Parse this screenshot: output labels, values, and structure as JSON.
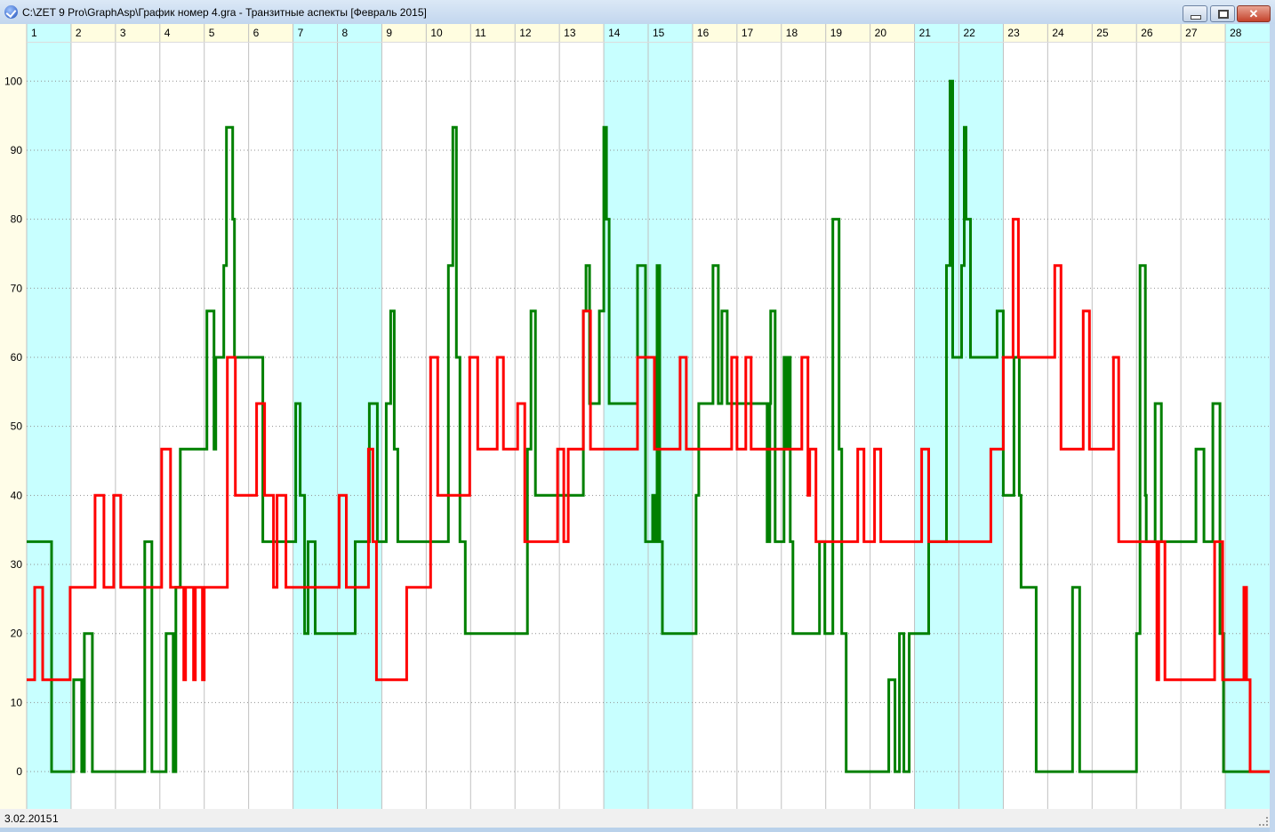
{
  "window": {
    "title": "C:\\ZET 9 Pro\\GraphAsp\\График номер 4.gra - Транзитные аспекты [Февраль 2015]",
    "close_glyph": "✕",
    "icons": [
      "app-checkmark-icon",
      "minimize-icon",
      "maximize-icon",
      "close-icon"
    ]
  },
  "status": {
    "date": "3.02.2015",
    "value": "1"
  },
  "colors": {
    "weekend": "#c8ffff",
    "header_bg": "#fffde0",
    "axis_bg": "#fffde8",
    "grid": "#c0c0c0",
    "series_green": "#008000",
    "series_red": "#ff0000"
  },
  "chart_data": {
    "type": "line",
    "step": true,
    "title": "",
    "xlabel": "",
    "ylabel": "",
    "xlim": [
      1,
      29
    ],
    "ylim": [
      -5.4,
      105.7
    ],
    "y_ticks": [
      0,
      10,
      20,
      30,
      40,
      50,
      60,
      70,
      80,
      90,
      100
    ],
    "y_tick_labels": [
      "0",
      "10",
      "20",
      "30",
      "40",
      "50",
      "60",
      "70",
      "80",
      "90",
      "100"
    ],
    "x_tick_labels": [
      "1",
      "2",
      "3",
      "4",
      "5",
      "6",
      "7",
      "8",
      "9",
      "10",
      "11",
      "12",
      "13",
      "14",
      "15",
      "16",
      "17",
      "18",
      "19",
      "20",
      "21",
      "22",
      "23",
      "24",
      "25",
      "26",
      "27",
      "28"
    ],
    "highlighted_days": [
      1,
      7,
      8,
      14,
      15,
      21,
      22,
      28
    ],
    "grid": {
      "vertical": "solid",
      "horizontal": "dotted"
    },
    "series": [
      {
        "color": "#008000",
        "x": [
          1.0,
          1.56,
          2.06,
          2.24,
          2.3,
          2.48,
          3.66,
          3.82,
          4.14,
          4.3,
          4.36,
          4.46,
          5.06,
          5.22,
          5.26,
          5.44,
          5.5,
          5.64,
          5.68,
          6.32,
          7.06,
          7.16,
          7.26,
          7.34,
          7.5,
          8.4,
          8.72,
          8.9,
          9.1,
          9.2,
          9.28,
          9.36,
          10.5,
          10.6,
          10.68,
          10.76,
          10.88,
          12.28,
          12.36,
          12.46,
          13.54,
          13.6,
          13.68,
          13.9,
          14.0,
          14.06,
          14.12,
          14.76,
          14.94,
          15.1,
          15.14,
          15.2,
          15.26,
          15.32,
          16.08,
          16.14,
          16.46,
          16.58,
          16.66,
          16.78,
          17.68,
          17.74,
          17.76,
          17.86,
          18.06,
          18.1,
          18.14,
          18.2,
          18.26,
          18.86,
          18.98,
          19.16,
          19.3,
          19.36,
          19.46,
          20.42,
          20.56,
          20.66,
          20.76,
          20.88,
          21.32,
          21.72,
          21.8,
          21.86,
          22.06,
          22.12,
          22.16,
          22.26,
          22.86,
          23.0,
          23.24,
          23.36,
          23.4,
          23.74,
          24.56,
          24.72,
          26.0,
          26.08,
          26.2,
          26.22,
          26.42,
          26.56,
          27.34,
          27.52,
          27.72,
          27.88,
          27.96,
          29.0
        ],
        "y": [
          33.3,
          0,
          13.3,
          0,
          20,
          0,
          33.3,
          0,
          20,
          0,
          26.7,
          46.7,
          66.7,
          46.7,
          60,
          73.3,
          93.3,
          80,
          60,
          33.3,
          53.3,
          40,
          20,
          33.3,
          20,
          33.3,
          53.3,
          33.3,
          53.3,
          66.7,
          46.7,
          33.3,
          73.3,
          93.3,
          60,
          33.3,
          20,
          46.7,
          66.7,
          40,
          66.7,
          73.3,
          53.3,
          66.7,
          93.3,
          80,
          53.3,
          73.3,
          33.3,
          40,
          33.3,
          73.3,
          33.3,
          20,
          40,
          53.3,
          73.3,
          53.3,
          66.7,
          53.3,
          33.3,
          53.3,
          66.7,
          33.3,
          60,
          46.7,
          60,
          33.3,
          20,
          33.3,
          20,
          80,
          46.7,
          20,
          0,
          13.3,
          0,
          20,
          0,
          20,
          33.3,
          73.3,
          100,
          60,
          73.3,
          93.3,
          80,
          60,
          66.7,
          40,
          60,
          40,
          26.7,
          0,
          26.7,
          0,
          20,
          73.3,
          40,
          33.3,
          53.3,
          33.3,
          46.7,
          33.3,
          53.3,
          20,
          0,
          0
        ]
      },
      {
        "color": "#ff0000",
        "x": [
          1.0,
          1.18,
          1.36,
          1.98,
          2.54,
          2.74,
          2.96,
          3.12,
          4.04,
          4.24,
          4.54,
          4.58,
          4.76,
          4.8,
          4.96,
          5.0,
          5.52,
          5.7,
          6.18,
          6.36,
          6.56,
          6.64,
          6.84,
          8.04,
          8.2,
          8.7,
          8.8,
          8.88,
          9.56,
          10.1,
          10.26,
          10.98,
          11.16,
          11.6,
          11.74,
          12.06,
          12.22,
          12.96,
          13.1,
          13.2,
          13.54,
          13.7,
          14.76,
          15.14,
          15.72,
          15.86,
          16.88,
          17.0,
          17.2,
          17.32,
          18.46,
          18.6,
          18.64,
          18.78,
          19.72,
          19.86,
          20.1,
          20.24,
          21.16,
          21.32,
          22.72,
          23.0,
          23.22,
          23.34,
          24.16,
          24.3,
          24.8,
          24.94,
          25.48,
          25.6,
          26.46,
          26.5,
          26.64,
          27.76,
          27.94,
          28.42,
          28.48,
          28.56,
          29.0
        ],
        "y": [
          13.3,
          26.7,
          13.3,
          26.7,
          40,
          26.7,
          40,
          26.7,
          46.7,
          26.7,
          13.3,
          26.7,
          13.3,
          26.7,
          13.3,
          26.7,
          60,
          40,
          53.3,
          40,
          26.7,
          40,
          26.7,
          40,
          26.7,
          46.7,
          33.3,
          13.3,
          26.7,
          60,
          40,
          60,
          46.7,
          60,
          46.7,
          53.3,
          33.3,
          46.7,
          33.3,
          46.7,
          66.7,
          46.7,
          60,
          46.7,
          60,
          46.7,
          60,
          46.7,
          60,
          46.7,
          60,
          40,
          46.7,
          33.3,
          46.7,
          33.3,
          46.7,
          33.3,
          46.7,
          33.3,
          46.7,
          60,
          80,
          60,
          73.3,
          46.7,
          66.7,
          46.7,
          60,
          33.3,
          13.3,
          33.3,
          13.3,
          33.3,
          13.3,
          26.7,
          13.3,
          0,
          0
        ]
      }
    ]
  }
}
